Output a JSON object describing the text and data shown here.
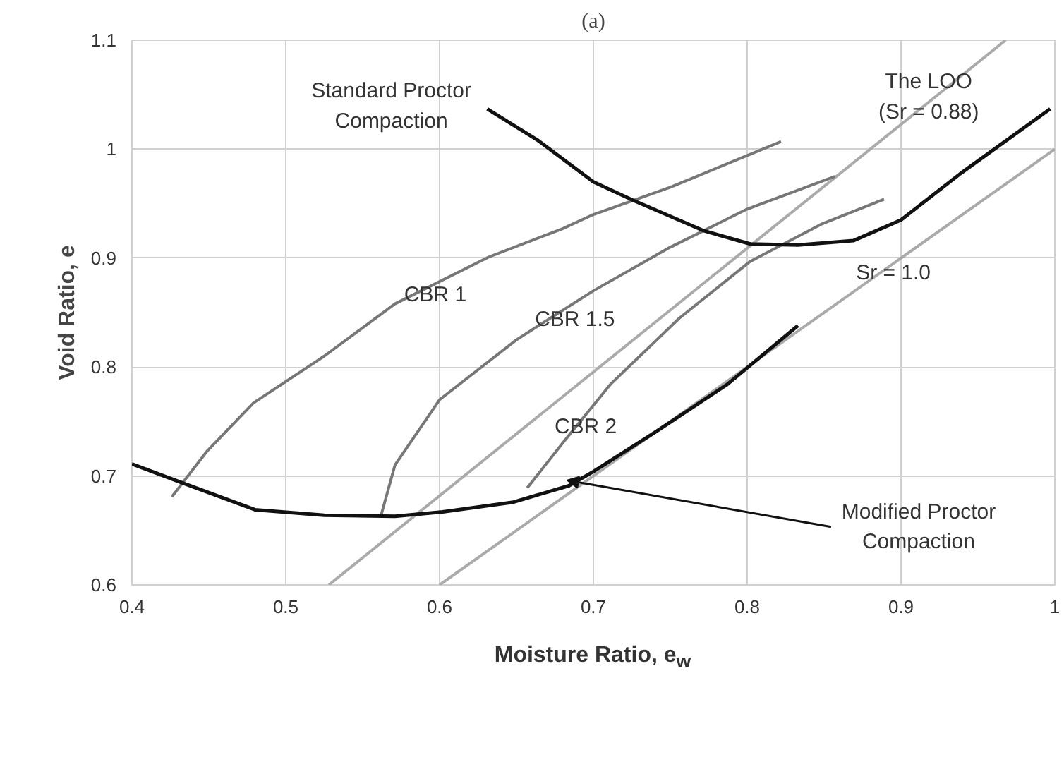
{
  "chart_data": {
    "type": "line",
    "title": "(a)",
    "xlabel": "Moisture Ratio, e$_{w}$",
    "ylabel": "Void Ratio, e",
    "xlim": [
      0.4,
      1.0
    ],
    "ylim": [
      0.6,
      1.1
    ],
    "xticks": [
      0.4,
      0.5,
      0.6,
      0.7,
      0.8,
      0.9,
      1
    ],
    "yticks": [
      0.6,
      0.7,
      0.8,
      0.9,
      1,
      1.1
    ],
    "grid": true,
    "line_style": "solid",
    "series": [
      {
        "color": "#aaaaaa",
        "x": [
          0.528,
          0.968
        ],
        "values": [
          0.6,
          1.1
        ]
      },
      {
        "color": "#aaaaaa",
        "x": [
          0.6,
          1.0
        ],
        "values": [
          0.6,
          1.0
        ]
      },
      {
        "color": "#777777",
        "x": [
          0.426,
          0.449,
          0.479,
          0.525,
          0.571,
          0.632,
          0.68,
          0.7,
          0.75,
          0.822
        ],
        "values": [
          0.681,
          0.723,
          0.767,
          0.81,
          0.858,
          0.901,
          0.927,
          0.94,
          0.965,
          1.007
        ]
      },
      {
        "color": "#777777",
        "x": [
          0.562,
          0.571,
          0.6,
          0.65,
          0.7,
          0.75,
          0.8,
          0.857
        ],
        "values": [
          0.664,
          0.71,
          0.77,
          0.825,
          0.87,
          0.91,
          0.945,
          0.975
        ]
      },
      {
        "color": "#777777",
        "x": [
          0.657,
          0.681,
          0.711,
          0.756,
          0.802,
          0.848,
          0.889
        ],
        "values": [
          0.689,
          0.732,
          0.784,
          0.845,
          0.897,
          0.931,
          0.954
        ]
      },
      {
        "color": "#111111",
        "x": [
          0.631,
          0.663,
          0.7,
          0.726,
          0.772,
          0.802,
          0.833,
          0.869,
          0.9,
          0.939,
          0.997
        ],
        "values": [
          1.037,
          1.009,
          0.97,
          0.953,
          0.925,
          0.913,
          0.912,
          0.916,
          0.935,
          0.978,
          1.037
        ]
      },
      {
        "color": "#111111",
        "x": [
          0.4,
          0.434,
          0.48,
          0.525,
          0.571,
          0.602,
          0.648,
          0.684,
          0.7,
          0.741,
          0.787,
          0.833
        ],
        "values": [
          0.711,
          0.693,
          0.669,
          0.664,
          0.663,
          0.667,
          0.676,
          0.691,
          0.704,
          0.741,
          0.784,
          0.838
        ]
      }
    ],
    "annotations": [
      {
        "text": "Standard Proctor\nCompaction",
        "x": 0.631,
        "y": 1.037
      },
      {
        "text": "CBR 1",
        "x": 0.6,
        "y": 0.878
      },
      {
        "text": "CBR 1.5",
        "x": 0.688,
        "y": 0.859
      },
      {
        "text": "CBR 2",
        "x": 0.695,
        "y": 0.745
      },
      {
        "text": "The LOO\n(Sr = 0.88)",
        "x": 0.918,
        "y": 1.048
      },
      {
        "text": "Sr = 1.0",
        "x": 0.895,
        "y": 0.886
      },
      {
        "text": "Modified Proctor\nCompaction",
        "x": 0.683,
        "y": 0.696
      }
    ]
  }
}
